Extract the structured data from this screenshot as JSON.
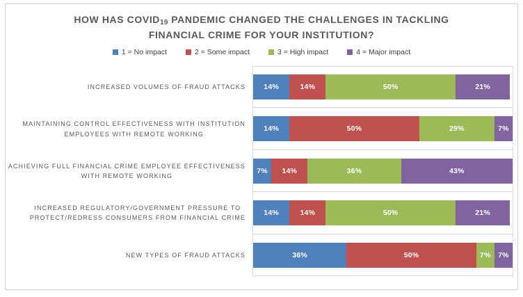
{
  "title": {
    "before_sub": "HOW HAS COVID",
    "sub": "19",
    "after_sub": " PANDEMIC CHANGED THE CHALLENGES IN TACKLING FINANCIAL CRIME FOR YOUR INSTITUTION?"
  },
  "colors": {
    "no_impact": "#4f81bd",
    "some_impact": "#c0504d",
    "high_impact": "#9bbb59",
    "major_impact": "#8064a2",
    "gridline": "#d9d9d9",
    "title_text": "#595959",
    "category_text": "#595959",
    "data_label_text": "#ffffff",
    "frame_border": "#cfcfcf"
  },
  "chart_data": {
    "type": "bar",
    "orientation": "horizontal",
    "stacked": true,
    "title": "HOW HAS COVID19 PANDEMIC CHANGED THE CHALLENGES IN TACKLING FINANCIAL CRIME FOR YOUR INSTITUTION?",
    "xlim": [
      0,
      100
    ],
    "unit": "%",
    "legend_position": "top",
    "grid": "category-separator-lines",
    "categories": [
      "INCREASED VOLUMES OF FRAUD ATTACKS",
      "MAINTAINING CONTROL EFFECTIVENESS WITH INSTITUTION EMPLOYEES WITH REMOTE WORKING",
      "ACHIEVING FULL FINANCIAL CRIME EMPLOYEE EFFECTIVENESS WITH REMOTE WORKING",
      "INCREASED REGULATORY/GOVERNMENT PRESSURE TO PROTECT/REDRESS CONSUMERS FROM FINANCIAL CRIME",
      "NEW TYPES OF FRAUD ATTACKS"
    ],
    "categories_wrapped": [
      [
        "INCREASED VOLUMES OF FRAUD ATTACKS"
      ],
      [
        "MAINTAINING CONTROL EFFECTIVENESS WITH INSTITUTION",
        "EMPLOYEES WITH REMOTE WORKING"
      ],
      [
        "ACHIEVING FULL FINANCIAL CRIME EMPLOYEE EFFECTIVENESS",
        "WITH REMOTE WORKING"
      ],
      [
        "INCREASED REGULATORY/GOVERNMENT PRESSURE TO",
        "PROTECT/REDRESS CONSUMERS FROM FINANCIAL CRIME"
      ],
      [
        "NEW TYPES OF FRAUD ATTACKS"
      ]
    ],
    "series": [
      {
        "name": "1 = No impact",
        "color": "#4f81bd",
        "values": [
          14,
          14,
          7,
          14,
          36
        ]
      },
      {
        "name": "2 = Some impact",
        "color": "#c0504d",
        "values": [
          14,
          50,
          14,
          14,
          50
        ]
      },
      {
        "name": "3 = High impact",
        "color": "#9bbb59",
        "values": [
          50,
          29,
          36,
          50,
          7
        ]
      },
      {
        "name": "4 = Major impact",
        "color": "#8064a2",
        "values": [
          21,
          7,
          43,
          21,
          7
        ]
      }
    ]
  }
}
